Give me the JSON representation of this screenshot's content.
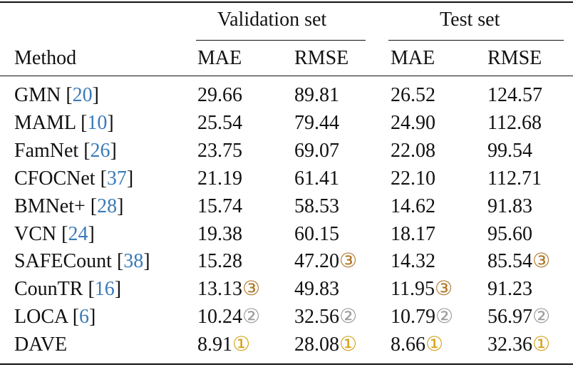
{
  "table": {
    "groups": [
      "Validation set",
      "Test set"
    ],
    "columns": [
      "Method",
      "MAE",
      "RMSE",
      "MAE",
      "RMSE"
    ],
    "cite_brackets": [
      "[",
      "]"
    ],
    "rows": [
      {
        "method": "GMN",
        "ref": "20",
        "cells": [
          "29.66",
          "89.81",
          "26.52",
          "124.57"
        ]
      },
      {
        "method": "MAML",
        "ref": "10",
        "cells": [
          "25.54",
          "79.44",
          "24.90",
          "112.68"
        ]
      },
      {
        "method": "FamNet",
        "ref": "26",
        "cells": [
          "23.75",
          "69.07",
          "22.08",
          "99.54"
        ]
      },
      {
        "method": "CFOCNet",
        "ref": "37",
        "cells": [
          "21.19",
          "61.41",
          "22.10",
          "112.71"
        ]
      },
      {
        "method": "BMNet+",
        "ref": "28",
        "cells": [
          "15.74",
          "58.53",
          "14.62",
          "91.83"
        ]
      },
      {
        "method": "VCN",
        "ref": "24",
        "cells": [
          "19.38",
          "60.15",
          "18.17",
          "95.60"
        ]
      },
      {
        "method": "SAFECount",
        "ref": "38",
        "cells": [
          "15.28",
          {
            "text": "47.20",
            "rank": "③"
          },
          "14.32",
          {
            "text": "85.54",
            "rank": "③"
          }
        ]
      },
      {
        "method": "CounTR",
        "ref": "16",
        "cells": [
          {
            "text": "13.13",
            "rank": "③"
          },
          "49.83",
          {
            "text": "11.95",
            "rank": "③"
          },
          "91.23"
        ]
      },
      {
        "method": "LOCA",
        "ref": "6",
        "cells": [
          {
            "text": "10.24",
            "rank": "②"
          },
          {
            "text": "32.56",
            "rank": "②"
          },
          {
            "text": "10.79",
            "rank": "②"
          },
          {
            "text": "56.97",
            "rank": "②"
          }
        ]
      },
      {
        "method": "DAVE",
        "cells": [
          {
            "text": "8.91",
            "rank": "①"
          },
          {
            "text": "28.08",
            "rank": "①"
          },
          {
            "text": "8.66",
            "rank": "①"
          },
          {
            "text": "32.36",
            "rank": "①"
          }
        ]
      }
    ]
  }
}
